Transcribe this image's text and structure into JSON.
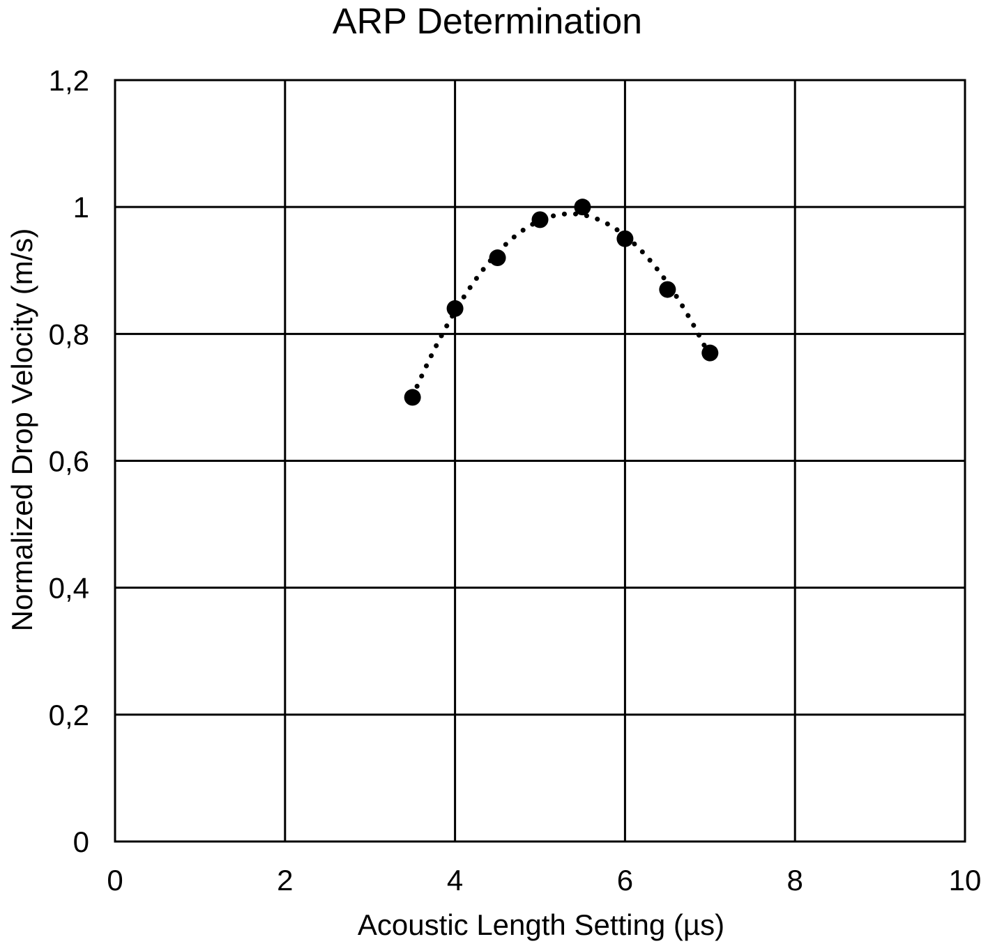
{
  "chart_data": {
    "type": "scatter",
    "title": "ARP Determination",
    "xlabel": "Acoustic Length  Setting (µs)",
    "ylabel": "Normalized   Drop Velocity (m/s)",
    "xlim": [
      0,
      10
    ],
    "ylim": [
      0,
      1.2
    ],
    "xticks": [
      0,
      2,
      4,
      6,
      8,
      10
    ],
    "yticks": [
      0,
      0.2,
      0.4,
      0.6,
      0.8,
      1.0,
      1.2
    ],
    "xtick_labels": [
      "0",
      "2",
      "4",
      "6",
      "8",
      "10"
    ],
    "ytick_labels": [
      "0",
      "0,2",
      "0,4",
      "0,6",
      "0,8",
      "1",
      "1,2"
    ],
    "grid": true,
    "legend": "none",
    "colors": {
      "marker": "#000000",
      "trendline": "#000000",
      "grid": "#000000"
    },
    "series": [
      {
        "x": [
          3.5,
          4.0,
          4.5,
          5.0,
          5.5,
          6.0,
          6.5,
          7.0
        ],
        "y": [
          0.7,
          0.84,
          0.92,
          0.98,
          1.0,
          0.95,
          0.87,
          0.77
        ]
      }
    ],
    "trendline": {
      "type": "polynomial",
      "style": "dotted",
      "x_range": [
        3.5,
        7.0
      ]
    }
  }
}
